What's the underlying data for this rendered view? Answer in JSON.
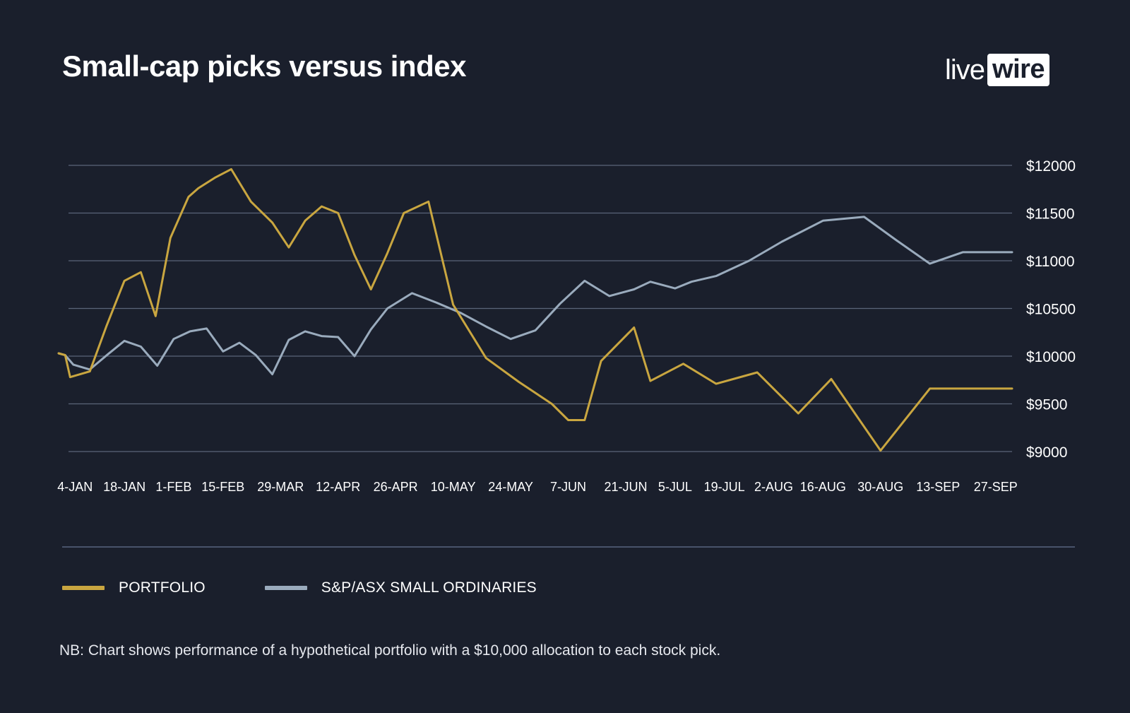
{
  "header": {
    "title": "Small-cap picks versus index",
    "logo_live": "live",
    "logo_wire": "wire"
  },
  "footnote": "NB: Chart shows performance of a hypothetical portfolio with a $10,000 allocation to each stock pick.",
  "colors": {
    "background": "#1a1f2c",
    "portfolio": "#c9a640",
    "index": "#9aabbd",
    "grid": "#5a6478"
  },
  "chart_data": {
    "type": "line",
    "title": "Small-cap picks versus index",
    "xlabel": "",
    "ylabel": "",
    "ylim": [
      9000,
      12000
    ],
    "y_ticks": [
      9000,
      9500,
      10000,
      10500,
      11000,
      11500,
      12000
    ],
    "y_tick_labels": [
      "$9000",
      "$9500",
      "$10000",
      "$10500",
      "$11000",
      "$11500",
      "$12000"
    ],
    "x_range": [
      0,
      58
    ],
    "x_ticks": [
      1,
      4,
      7,
      10,
      13.5,
      17,
      20.5,
      24,
      27.5,
      31,
      34.5,
      37.5,
      40.5,
      43.5,
      46.5,
      50,
      53.5,
      57
    ],
    "x_tick_labels": [
      "4-JAN",
      "18-JAN",
      "1-FEB",
      "15-FEB",
      "29-MAR",
      "12-APR",
      "26-APR",
      "10-MAY",
      "24-MAY",
      "7-JUN",
      "21-JUN",
      "5-JUL",
      "19-JUL",
      "2-AUG",
      "16-AUG",
      "30-AUG",
      "13-SEP",
      "27-SEP"
    ],
    "grid": true,
    "legend_position": "bottom-left",
    "series": [
      {
        "name": "PORTFOLIO",
        "color": "#c9a640",
        "x": [
          0,
          0.4,
          0.7,
          1.9,
          2.9,
          4,
          5,
          5.9,
          6.8,
          7.9,
          8.5,
          9.5,
          10.5,
          11.7,
          13,
          14,
          15,
          16,
          17,
          18,
          19,
          20,
          21,
          22.5,
          24,
          26,
          28,
          30,
          31,
          32,
          33,
          35,
          36,
          38,
          40,
          42.5,
          45,
          47,
          50,
          53,
          55.5,
          58
        ],
        "values": [
          10030,
          10010,
          9780,
          9840,
          10310,
          10790,
          10880,
          10420,
          11240,
          11670,
          11760,
          11870,
          11960,
          11620,
          11400,
          11140,
          11420,
          11570,
          11500,
          11060,
          10700,
          11080,
          11500,
          11620,
          10540,
          9980,
          9730,
          9500,
          9330,
          9330,
          9950,
          10300,
          9740,
          9920,
          9710,
          9830,
          9400,
          9760,
          9010,
          9660,
          9660,
          9660
        ]
      },
      {
        "name": "S&P/ASX SMALL ORDINARIES",
        "color": "#9aabbd",
        "x": [
          0,
          0.4,
          0.9,
          1.9,
          3,
          4,
          5,
          6,
          7,
          8,
          9,
          10,
          11,
          12,
          13,
          14,
          15,
          16,
          17,
          18,
          19,
          20,
          21.5,
          23,
          24.5,
          26,
          27.5,
          29,
          30.5,
          32,
          33.5,
          35,
          36,
          37.5,
          38.5,
          40,
          42,
          44,
          46.5,
          49,
          51,
          53,
          55,
          57,
          58
        ],
        "values": [
          10030,
          10010,
          9910,
          9860,
          10020,
          10160,
          10100,
          9900,
          10180,
          10260,
          10290,
          10050,
          10140,
          10010,
          9810,
          10170,
          10260,
          10210,
          10200,
          10000,
          10280,
          10500,
          10660,
          10560,
          10450,
          10310,
          10180,
          10270,
          10550,
          10790,
          10630,
          10700,
          10780,
          10710,
          10780,
          10840,
          11000,
          11200,
          11420,
          11460,
          11210,
          10970,
          11090,
          11090,
          11090
        ]
      }
    ]
  }
}
